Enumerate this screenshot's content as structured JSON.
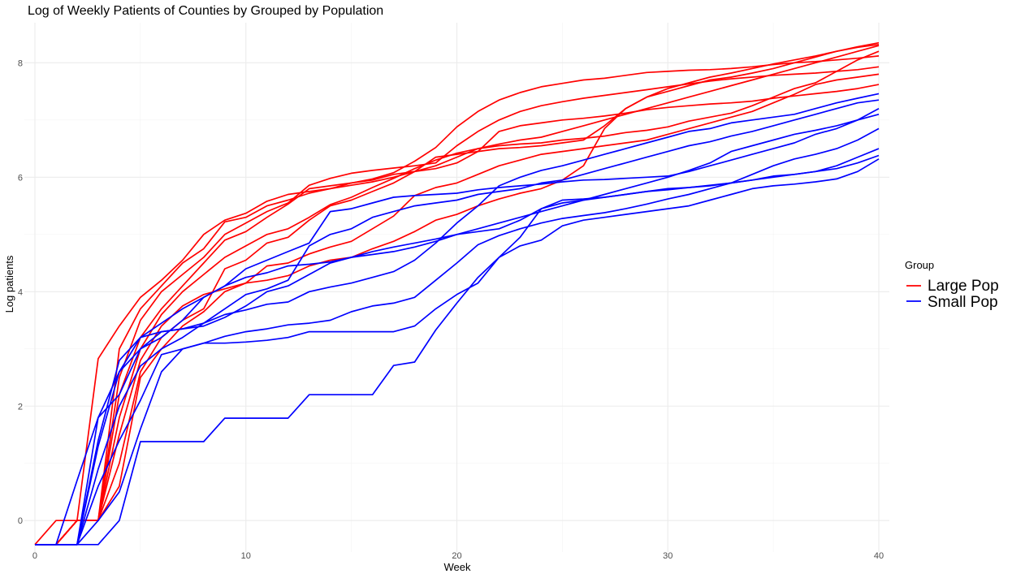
{
  "chart_data": {
    "type": "line",
    "title": "Log of Weekly Patients of Counties by Grouped by Population",
    "xlabel": "Week",
    "ylabel": "Log patients",
    "xlim": [
      -0.5,
      40.5
    ],
    "ylim": [
      -0.55,
      8.7
    ],
    "xticks": [
      0,
      10,
      20,
      30,
      40
    ],
    "yticks": [
      0,
      2,
      4,
      6,
      8
    ],
    "grid": true,
    "legend": {
      "title": "Group",
      "position": "right",
      "entries": [
        {
          "label": "Large Pop",
          "color": "#ff0000"
        },
        {
          "label": "Small Pop",
          "color": "#0000ff"
        }
      ]
    },
    "x": [
      0,
      1,
      2,
      3,
      4,
      5,
      6,
      7,
      8,
      9,
      10,
      11,
      12,
      13,
      14,
      15,
      16,
      17,
      18,
      19,
      20,
      21,
      22,
      23,
      24,
      25,
      26,
      27,
      28,
      29,
      30,
      31,
      32,
      33,
      34,
      35,
      36,
      37,
      38,
      39,
      40
    ],
    "series": [
      {
        "group": "Large Pop",
        "color": "#ff0000",
        "values": [
          -0.42,
          0,
          0,
          2.83,
          3.4,
          3.9,
          4.2,
          4.55,
          5.0,
          5.25,
          5.37,
          5.58,
          5.7,
          5.75,
          5.8,
          5.86,
          5.92,
          6.0,
          6.1,
          6.2,
          6.35,
          6.5,
          6.58,
          6.65,
          6.7,
          6.8,
          6.9,
          7.0,
          7.1,
          7.2,
          7.3,
          7.4,
          7.5,
          7.6,
          7.7,
          7.8,
          7.9,
          8.0,
          8.1,
          8.2,
          8.3
        ]
      },
      {
        "group": "Large Pop",
        "color": "#ff0000",
        "values": [
          -0.42,
          -0.42,
          0,
          0,
          3.0,
          3.7,
          4.1,
          4.5,
          4.75,
          5.22,
          5.3,
          5.5,
          5.6,
          5.72,
          5.8,
          5.9,
          5.97,
          6.08,
          6.28,
          6.52,
          6.88,
          7.15,
          7.35,
          7.48,
          7.58,
          7.64,
          7.7,
          7.73,
          7.78,
          7.83,
          7.85,
          7.87,
          7.88,
          7.9,
          7.93,
          7.97,
          8.0,
          8.02,
          8.05,
          8.08,
          8.12
        ]
      },
      {
        "group": "Large Pop",
        "color": "#ff0000",
        "values": [
          -0.42,
          -0.42,
          0,
          0,
          2.5,
          3.5,
          4.0,
          4.3,
          4.6,
          5.0,
          5.2,
          5.4,
          5.55,
          5.86,
          5.98,
          6.07,
          6.12,
          6.16,
          6.2,
          6.25,
          6.55,
          6.8,
          7.0,
          7.15,
          7.25,
          7.32,
          7.38,
          7.43,
          7.48,
          7.53,
          7.58,
          7.63,
          7.68,
          7.72,
          7.75,
          7.78,
          7.8,
          7.82,
          7.85,
          7.88,
          7.93
        ]
      },
      {
        "group": "Large Pop",
        "color": "#ff0000",
        "values": [
          -0.42,
          -0.42,
          0,
          0,
          2.2,
          3.2,
          3.7,
          4.1,
          4.5,
          4.9,
          5.05,
          5.3,
          5.53,
          5.8,
          5.85,
          5.9,
          5.95,
          6.05,
          6.1,
          6.15,
          6.25,
          6.45,
          6.8,
          6.9,
          6.95,
          7.0,
          7.03,
          7.07,
          7.12,
          7.18,
          7.22,
          7.25,
          7.28,
          7.3,
          7.33,
          7.38,
          7.42,
          7.46,
          7.5,
          7.55,
          7.62
        ]
      },
      {
        "group": "Large Pop",
        "color": "#ff0000",
        "values": [
          -0.42,
          -0.42,
          0,
          0,
          1.8,
          3.0,
          3.6,
          4.0,
          4.3,
          4.6,
          4.8,
          5.0,
          5.1,
          5.3,
          5.52,
          5.65,
          5.82,
          5.98,
          6.15,
          6.3,
          6.42,
          6.5,
          6.55,
          6.58,
          6.6,
          6.65,
          6.68,
          6.72,
          6.78,
          6.82,
          6.88,
          6.98,
          7.05,
          7.12,
          7.25,
          7.4,
          7.55,
          7.65,
          7.85,
          8.05,
          8.2
        ]
      },
      {
        "group": "Large Pop",
        "color": "#ff0000",
        "values": [
          -0.42,
          -0.42,
          0,
          0,
          1.5,
          2.8,
          3.4,
          3.75,
          3.95,
          4.05,
          4.15,
          4.45,
          4.5,
          4.66,
          4.78,
          4.88,
          5.1,
          5.32,
          5.68,
          5.82,
          5.9,
          6.05,
          6.2,
          6.3,
          6.4,
          6.45,
          6.5,
          6.55,
          6.6,
          6.65,
          6.75,
          6.85,
          6.95,
          7.05,
          7.15,
          7.3,
          7.45,
          7.62,
          7.7,
          7.75,
          7.8
        ]
      },
      {
        "group": "Large Pop",
        "color": "#ff0000",
        "values": [
          -0.42,
          -0.42,
          0,
          0,
          1.0,
          2.6,
          3.2,
          3.5,
          3.7,
          4.4,
          4.55,
          4.85,
          4.95,
          5.25,
          5.5,
          5.6,
          5.75,
          5.9,
          6.1,
          6.35,
          6.4,
          6.45,
          6.5,
          6.52,
          6.55,
          6.6,
          6.65,
          6.9,
          7.2,
          7.4,
          7.55,
          7.65,
          7.75,
          7.82,
          7.9,
          7.98,
          8.05,
          8.12,
          8.2,
          8.28,
          8.35
        ]
      },
      {
        "group": "Large Pop",
        "color": "#ff0000",
        "values": [
          -0.42,
          -0.42,
          0,
          0,
          0.6,
          2.5,
          3.0,
          3.4,
          3.65,
          4.0,
          4.15,
          4.2,
          4.28,
          4.45,
          4.55,
          4.6,
          4.75,
          4.88,
          5.05,
          5.25,
          5.35,
          5.5,
          5.62,
          5.72,
          5.8,
          5.95,
          6.2,
          6.85,
          7.2,
          7.4,
          7.5,
          7.6,
          7.7,
          7.75,
          7.82,
          7.9,
          8.0,
          8.1,
          8.2,
          8.27,
          8.32
        ]
      },
      {
        "group": "Small Pop",
        "color": "#0000ff",
        "values": [
          -0.42,
          -0.42,
          0.7,
          1.8,
          2.6,
          3.2,
          3.3,
          3.35,
          3.45,
          3.6,
          3.68,
          3.78,
          3.82,
          4.0,
          4.08,
          4.15,
          4.25,
          4.35,
          4.55,
          4.85,
          5.2,
          5.5,
          5.85,
          6.0,
          6.12,
          6.2,
          6.3,
          6.4,
          6.5,
          6.6,
          6.7,
          6.8,
          6.85,
          6.95,
          7.0,
          7.05,
          7.1,
          7.2,
          7.3,
          7.38,
          7.46
        ]
      },
      {
        "group": "Small Pop",
        "color": "#0000ff",
        "values": [
          -0.42,
          -0.42,
          -0.42,
          1.4,
          2.8,
          3.2,
          3.45,
          3.7,
          3.9,
          4.1,
          4.25,
          4.33,
          4.45,
          4.48,
          4.52,
          4.6,
          4.65,
          4.7,
          4.78,
          4.88,
          5.0,
          5.1,
          5.2,
          5.3,
          5.4,
          5.5,
          5.6,
          5.65,
          5.7,
          5.75,
          5.78,
          5.82,
          5.86,
          5.9,
          5.95,
          6.0,
          6.05,
          6.1,
          6.15,
          6.25,
          6.38
        ]
      },
      {
        "group": "Small Pop",
        "color": "#0000ff",
        "values": [
          -0.42,
          -0.42,
          -0.42,
          1.8,
          2.2,
          3.0,
          3.3,
          3.35,
          3.4,
          3.55,
          3.75,
          4.0,
          4.1,
          4.3,
          4.5,
          4.6,
          4.7,
          4.78,
          4.85,
          4.92,
          5.0,
          5.05,
          5.1,
          5.25,
          5.45,
          5.55,
          5.6,
          5.7,
          5.8,
          5.9,
          6.0,
          6.12,
          6.25,
          6.45,
          6.55,
          6.65,
          6.75,
          6.82,
          6.9,
          7.0,
          7.1
        ]
      },
      {
        "group": "Small Pop",
        "color": "#0000ff",
        "values": [
          -0.42,
          -0.42,
          -0.42,
          1.3,
          2.6,
          3.0,
          3.2,
          3.5,
          3.9,
          4.1,
          4.4,
          4.55,
          4.7,
          4.85,
          5.4,
          5.45,
          5.55,
          5.65,
          5.68,
          5.7,
          5.72,
          5.78,
          5.82,
          5.85,
          5.88,
          5.92,
          5.95,
          5.96,
          5.98,
          6.0,
          6.02,
          6.1,
          6.2,
          6.3,
          6.4,
          6.5,
          6.6,
          6.75,
          6.85,
          7.0,
          7.2
        ]
      },
      {
        "group": "Small Pop",
        "color": "#0000ff",
        "values": [
          -0.42,
          -0.42,
          -0.42,
          0.9,
          2.0,
          2.7,
          3.0,
          3.2,
          3.45,
          3.7,
          3.95,
          4.05,
          4.2,
          4.8,
          5.0,
          5.1,
          5.3,
          5.4,
          5.5,
          5.55,
          5.6,
          5.7,
          5.75,
          5.8,
          5.9,
          5.95,
          6.05,
          6.15,
          6.25,
          6.35,
          6.45,
          6.55,
          6.62,
          6.72,
          6.8,
          6.9,
          7.0,
          7.1,
          7.2,
          7.3,
          7.35
        ]
      },
      {
        "group": "Small Pop",
        "color": "#0000ff",
        "values": [
          -0.42,
          -0.42,
          -0.42,
          0.6,
          1.4,
          2.1,
          2.9,
          3.0,
          3.1,
          3.22,
          3.3,
          3.35,
          3.42,
          3.45,
          3.5,
          3.65,
          3.75,
          3.8,
          3.9,
          4.2,
          4.5,
          4.82,
          4.98,
          5.1,
          5.2,
          5.28,
          5.33,
          5.38,
          5.45,
          5.53,
          5.62,
          5.7,
          5.8,
          5.9,
          6.05,
          6.2,
          6.32,
          6.4,
          6.5,
          6.65,
          6.85
        ]
      },
      {
        "group": "Small Pop",
        "color": "#0000ff",
        "values": [
          -0.42,
          -0.42,
          -0.42,
          0,
          0.5,
          1.6,
          2.6,
          3.0,
          3.1,
          3.1,
          3.12,
          3.15,
          3.2,
          3.3,
          3.3,
          3.3,
          3.3,
          3.3,
          3.4,
          3.7,
          3.95,
          4.15,
          4.6,
          4.95,
          5.45,
          5.6,
          5.62,
          5.65,
          5.7,
          5.75,
          5.8,
          5.82,
          5.85,
          5.9,
          5.95,
          6.02,
          6.05,
          6.1,
          6.2,
          6.35,
          6.5
        ]
      },
      {
        "group": "Small Pop",
        "color": "#0000ff",
        "values": [
          -0.42,
          -0.42,
          -0.42,
          -0.42,
          0,
          1.38,
          1.38,
          1.38,
          1.38,
          1.79,
          1.79,
          1.79,
          1.79,
          2.2,
          2.2,
          2.2,
          2.2,
          2.71,
          2.77,
          3.33,
          3.8,
          4.25,
          4.6,
          4.8,
          4.9,
          5.15,
          5.25,
          5.3,
          5.35,
          5.4,
          5.45,
          5.5,
          5.6,
          5.7,
          5.8,
          5.85,
          5.88,
          5.92,
          5.97,
          6.1,
          6.32
        ]
      }
    ]
  }
}
